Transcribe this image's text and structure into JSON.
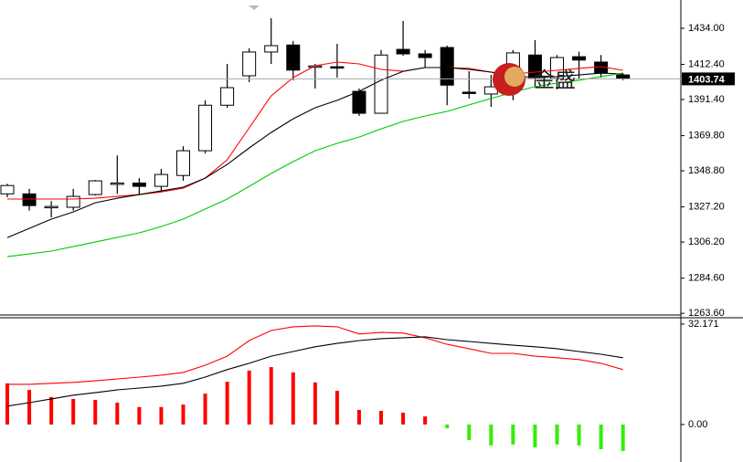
{
  "chart_data": [
    {
      "type": "candlestick",
      "categories": [
        null,
        null,
        null,
        null,
        null,
        null,
        null,
        null,
        null,
        null,
        null,
        null,
        null,
        null,
        null,
        null,
        null,
        null,
        null,
        null,
        null,
        null,
        null,
        null,
        null,
        null,
        null,
        null,
        null
      ],
      "open": [
        1335,
        1335,
        1327,
        1327,
        1334.6,
        1341,
        1341.5,
        1339.5,
        1346,
        1360.8,
        1388,
        1405.6,
        1419.8,
        1424,
        1411,
        1411,
        1396.3,
        1383.2,
        1421.4,
        1418.7,
        1422.5,
        1395.8,
        1394.7,
        1399,
        1418,
        1403.9,
        1417,
        1413.8,
        1406.1
      ],
      "high": [
        1341,
        1338,
        1330.7,
        1338,
        1343.3,
        1358,
        1344.4,
        1350,
        1363.5,
        1390.9,
        1412.7,
        1422,
        1440,
        1426.4,
        1412.7,
        1424.7,
        1398,
        1421,
        1438.4,
        1421,
        1423.6,
        1408.3,
        1406.1,
        1421,
        1426.9,
        1418,
        1420,
        1418,
        1407.2
      ],
      "low": [
        1333,
        1325,
        1321,
        1325,
        1334,
        1335,
        1334.6,
        1336,
        1342.8,
        1359.2,
        1386.5,
        1401.8,
        1412.7,
        1402.9,
        1398,
        1404.5,
        1381.6,
        1383.2,
        1417.6,
        1410.5,
        1388,
        1392,
        1387,
        1391,
        1399.1,
        1397.5,
        1403.8,
        1404.5,
        1402.9
      ],
      "close": [
        1340,
        1328,
        1327.5,
        1333.5,
        1342.8,
        1341.5,
        1339.5,
        1346.6,
        1360.8,
        1388,
        1398.5,
        1419.8,
        1423.6,
        1409,
        1411.5,
        1410.5,
        1383.2,
        1418,
        1418.7,
        1416.5,
        1400,
        1395.3,
        1399,
        1419.3,
        1404.5,
        1416.5,
        1415,
        1407.2,
        1404
      ],
      "up_color": "#ffffff",
      "down_color": "#000000",
      "outline_color": "#000000",
      "series": [
        {
          "color": "#ff0000",
          "values": [
            1331.9,
            1331.9,
            1331.9,
            1331.9,
            1332.4,
            1333.5,
            1334.6,
            1336.2,
            1338.4,
            1344.4,
            1355.4,
            1374.5,
            1393.6,
            1404.5,
            1411.6,
            1413.8,
            1412.7,
            1409.4,
            1408.3,
            1410.5,
            1410.5,
            1410,
            1407.8,
            1406.7,
            1407.8,
            1408.9,
            1410,
            1411.1,
            1408.9
          ]
        },
        {
          "color": "#000000",
          "values": [
            1308.9,
            1314.4,
            1319.9,
            1324.2,
            1329.7,
            1332.4,
            1334.6,
            1336.8,
            1339,
            1344.4,
            1352.6,
            1362.5,
            1371.7,
            1379.9,
            1386.5,
            1390.9,
            1396.3,
            1402.9,
            1408.3,
            1410.5,
            1410.5,
            1409.4,
            1407.8,
            1405.6,
            1404.5,
            1405.1,
            1406.1,
            1407.2,
            1406.7
          ]
        },
        {
          "color": "#00c800",
          "values": [
            1297.5,
            1299.1,
            1300.8,
            1303.5,
            1306.2,
            1309,
            1311.7,
            1315.5,
            1319.9,
            1325.9,
            1331.9,
            1339.5,
            1347.2,
            1354.3,
            1360.8,
            1365.2,
            1369,
            1373.9,
            1378.3,
            1381.6,
            1384.3,
            1388.2,
            1392,
            1395.8,
            1399.1,
            1401.2,
            1402.9,
            1405.1,
            1407.2
          ]
        }
      ],
      "ylim": [
        1262.6,
        1450.9
      ],
      "yticks": [
        {
          "value": 1434,
          "label": "1434.00"
        },
        {
          "value": 1412.4,
          "label": "1412.40"
        },
        {
          "value": 1391.4,
          "label": "1391.40"
        },
        {
          "value": 1369.8,
          "label": "1369.80"
        },
        {
          "value": 1348.8,
          "label": "1348.80"
        },
        {
          "value": 1327.2,
          "label": "1327.20"
        },
        {
          "value": 1306.2,
          "label": "1306.20"
        },
        {
          "value": 1284.6,
          "label": "1284.60"
        },
        {
          "value": 1263.6,
          "label": "1263.60"
        }
      ],
      "current_price": 1403.74,
      "watermark": "金盛"
    },
    {
      "type": "macd",
      "values": [
        13.2,
        11.1,
        8.8,
        8.2,
        7.9,
        7.0,
        5.6,
        5.6,
        6.4,
        9.9,
        13.7,
        17.3,
        18.4,
        16.7,
        13.5,
        10.8,
        4.7,
        4.4,
        3.8,
        2.6,
        -1.2,
        -5.0,
        -6.7,
        -6.4,
        -7.3,
        -6.4,
        -6.7,
        -7.9,
        -8.5
      ],
      "positive_color": "#ff0000",
      "negative_color": "#33ee00",
      "series": [
        {
          "color": "#ff0000",
          "values": [
            12.9,
            12.9,
            13.2,
            13.5,
            14.0,
            14.6,
            15.2,
            15.8,
            16.7,
            19.0,
            21.9,
            26.9,
            30.1,
            31.3,
            31.6,
            31.3,
            29.0,
            29.5,
            29.3,
            27.8,
            25.7,
            24.3,
            22.8,
            22.8,
            21.9,
            21.4,
            20.8,
            19.6,
            17.6
          ]
        },
        {
          "color": "#000000",
          "values": [
            5.9,
            7.0,
            8.2,
            9.4,
            10.2,
            11.1,
            11.7,
            12.3,
            13.2,
            15.2,
            17.6,
            19.6,
            21.9,
            23.4,
            24.9,
            26.0,
            26.9,
            27.5,
            27.8,
            28.1,
            27.2,
            26.6,
            26.0,
            25.4,
            24.9,
            24.3,
            23.4,
            22.5,
            21.4
          ]
        }
      ],
      "ylim": [
        -12,
        34.5
      ],
      "yticks": [
        32.171,
        {
          "value": 0,
          "label": "0.00"
        }
      ]
    }
  ]
}
